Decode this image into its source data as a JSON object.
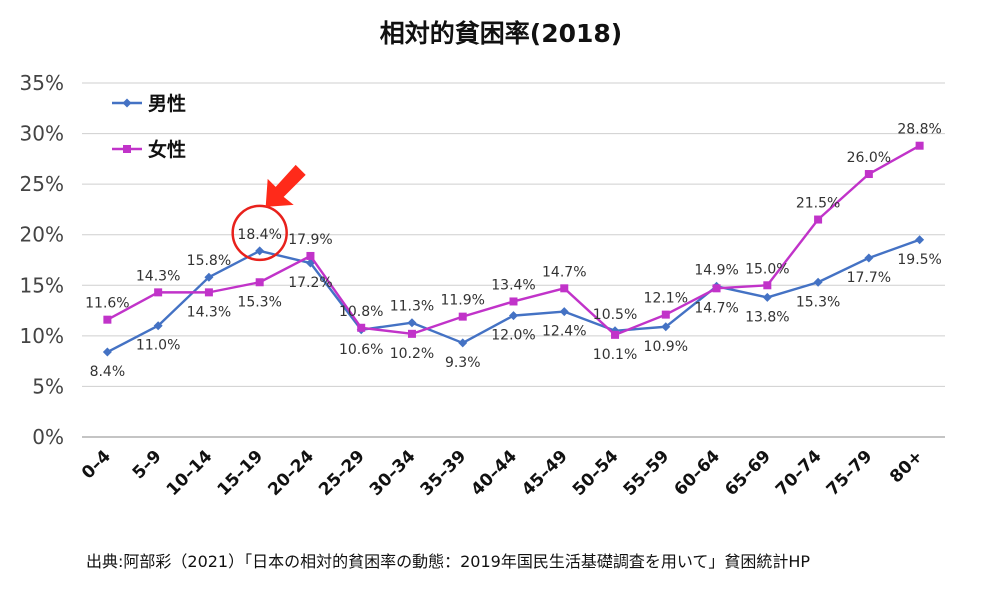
{
  "title": "相対的貧困率(2018)",
  "source_note": "出典:阿部彩（2021）「日本の相対的貧困率の動態：2019年国民生活基礎調査を用いて」貧困統計HP",
  "chart_data": {
    "type": "line",
    "title": "相対的貧困率(2018)",
    "categories": [
      "0–4",
      "5–9",
      "10–14",
      "15–19",
      "20–24",
      "25–29",
      "30–34",
      "35–39",
      "40–44",
      "45–49",
      "50–54",
      "55–59",
      "60–64",
      "65–69",
      "70–74",
      "75–79",
      "80+"
    ],
    "y_ticks": [
      "0%",
      "5%",
      "10%",
      "15%",
      "20%",
      "25%",
      "30%",
      "35%"
    ],
    "ylim": [
      0,
      35
    ],
    "grid": true,
    "legend": "top-left",
    "series": [
      {
        "name": "男性",
        "color": "#4472C4",
        "marker": "diamond",
        "values": [
          8.4,
          11.0,
          15.8,
          18.4,
          17.2,
          10.6,
          11.3,
          9.3,
          12.0,
          12.4,
          10.5,
          10.9,
          14.9,
          13.8,
          15.3,
          17.7,
          19.5
        ],
        "labels": [
          "8.4%",
          "11.0%",
          "15.8%",
          "18.4%",
          "17.2%",
          "10.6%",
          "11.3%",
          "9.3%",
          "12.0%",
          "12.4%",
          "10.5%",
          "10.9%",
          "14.9%",
          "13.8%",
          "15.3%",
          "17.7%",
          "19.5%"
        ]
      },
      {
        "name": "女性",
        "color": "#C133C9",
        "marker": "square",
        "values": [
          11.6,
          14.3,
          14.3,
          15.3,
          17.9,
          10.8,
          10.2,
          11.9,
          13.4,
          14.7,
          10.1,
          12.1,
          14.7,
          15.0,
          21.5,
          26.0,
          28.8
        ],
        "labels": [
          "11.6%",
          "14.3%",
          "14.3%",
          "15.3%",
          "17.9%",
          "10.8%",
          "10.2%",
          "11.9%",
          "13.4%",
          "14.7%",
          "10.1%",
          "12.1%",
          "14.7%",
          "15.0%",
          "21.5%",
          "26.0%",
          "28.8%"
        ]
      }
    ],
    "annotations": [
      {
        "type": "circle",
        "color": "#E8211C",
        "target": "15–19"
      },
      {
        "type": "arrow",
        "color": "#FF2A1A",
        "target": "15–19"
      }
    ]
  }
}
